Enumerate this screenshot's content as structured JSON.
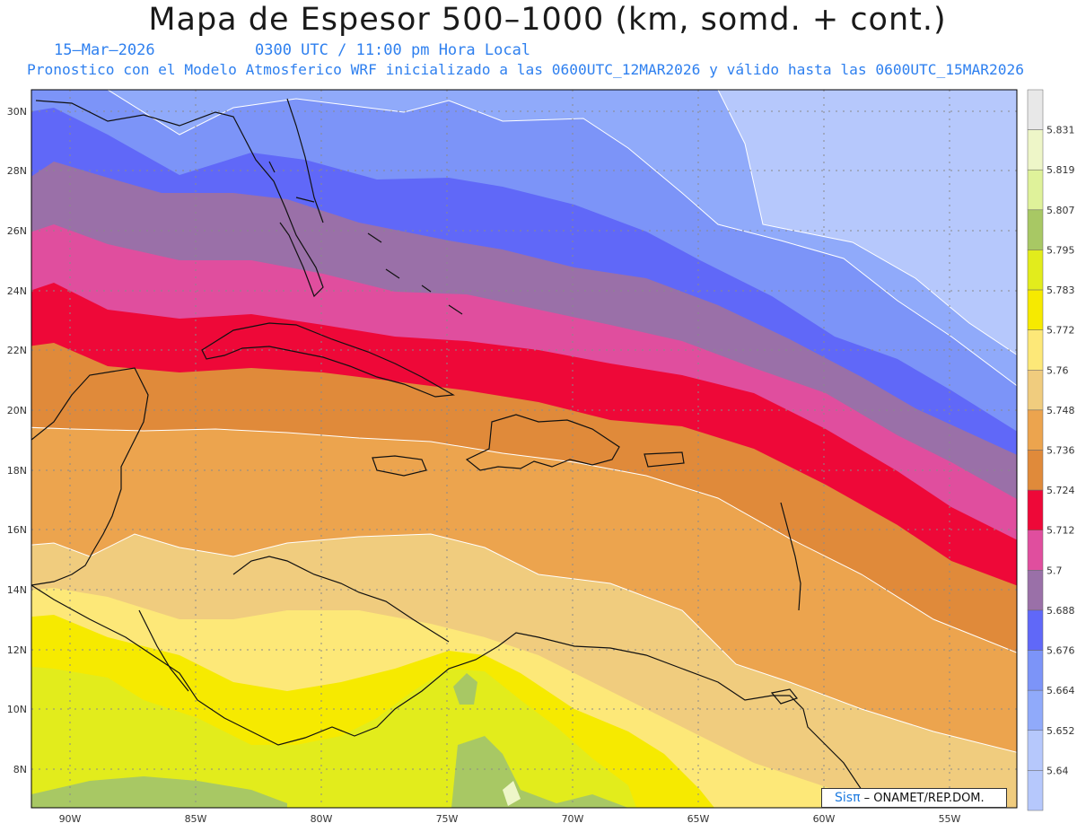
{
  "header": {
    "title": "Mapa de Espesor 500–1000 (km, somd. + cont.)",
    "date": "15–Mar–2026",
    "time": "0300 UTC / 11:00 pm Hora Local",
    "description": "Pronostico con el Modelo Atmosferico WRF inicializado a las 0600UTC_12MAR2026 y válido hasta las  0600UTC_15MAR2026"
  },
  "credit": {
    "brand": "Sisπ",
    "text": "– ONAMET/REP.DOM."
  },
  "map": {
    "lat_labels": [
      "30N",
      "28N",
      "26N",
      "24N",
      "22N",
      "20N",
      "18N",
      "16N",
      "14N",
      "12N",
      "10N",
      "8N"
    ],
    "lon_labels": [
      "90W",
      "85W",
      "80W",
      "75W",
      "70W",
      "65W",
      "60W",
      "55W"
    ]
  },
  "legend": {
    "levels": [
      "5.831",
      "5.819",
      "5.807",
      "5.795",
      "5.783",
      "5.772",
      "5.76",
      "5.748",
      "5.736",
      "5.724",
      "5.712",
      "5.7",
      "5.688",
      "5.676",
      "5.664",
      "5.652",
      "5.64"
    ],
    "colors": [
      "#e8e8e8",
      "#eef6c8",
      "#dff29a",
      "#a8c864",
      "#e2ec1c",
      "#f6ea00",
      "#fde878",
      "#f0cc7e",
      "#eca44e",
      "#e08a3a",
      "#ee0838",
      "#e04e9e",
      "#9a70a8",
      "#6068f8",
      "#7c94f8",
      "#90aafa",
      "#b6c8fc"
    ]
  }
}
